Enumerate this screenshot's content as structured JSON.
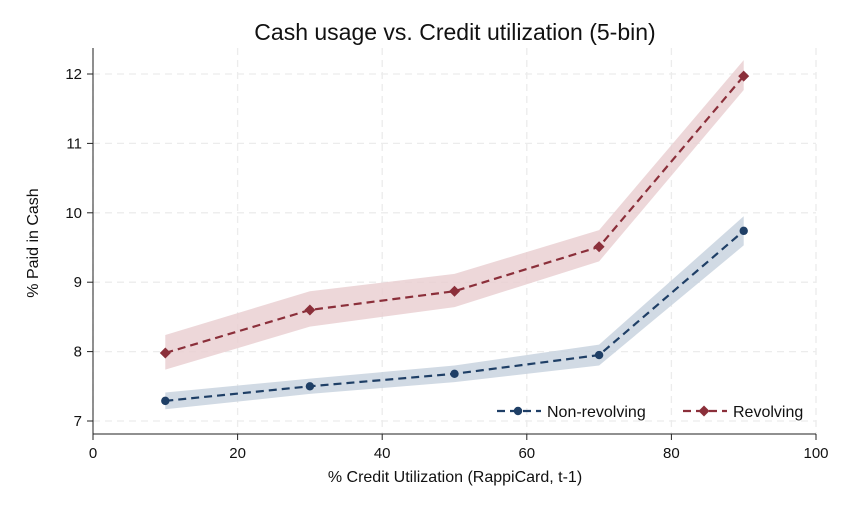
{
  "chart_data": {
    "type": "line",
    "title": "Cash usage vs. Credit utilization (5-bin)",
    "xlabel": "% Credit Utilization (RappiCard, t-1)",
    "ylabel": "% Paid in Cash",
    "xlim": [
      0,
      100
    ],
    "ylim": [
      7,
      12
    ],
    "xticks": [
      0,
      20,
      40,
      60,
      80,
      100
    ],
    "yticks": [
      7,
      8,
      9,
      10,
      11,
      12
    ],
    "grid": true,
    "legend_position": "bottom-right",
    "series": [
      {
        "name": "Non-revolving",
        "color": "#1f3f66",
        "band_color": "#c9d3df",
        "marker": "circle",
        "linestyle": "dashed",
        "x": [
          10,
          30,
          50,
          70,
          90
        ],
        "y": [
          7.29,
          7.5,
          7.68,
          7.95,
          9.74
        ],
        "ci_low": [
          7.17,
          7.39,
          7.56,
          7.8,
          9.53
        ],
        "ci_high": [
          7.41,
          7.61,
          7.8,
          8.1,
          9.95
        ]
      },
      {
        "name": "Revolving",
        "color": "#8b2f3a",
        "band_color": "#ead0d2",
        "marker": "diamond",
        "linestyle": "dashed",
        "x": [
          10,
          30,
          50,
          70,
          90
        ],
        "y": [
          7.98,
          8.6,
          8.87,
          9.51,
          11.97
        ],
        "ci_low": [
          7.74,
          8.36,
          8.64,
          9.3,
          11.77
        ],
        "ci_high": [
          8.24,
          8.87,
          9.12,
          9.75,
          12.2
        ]
      }
    ]
  }
}
